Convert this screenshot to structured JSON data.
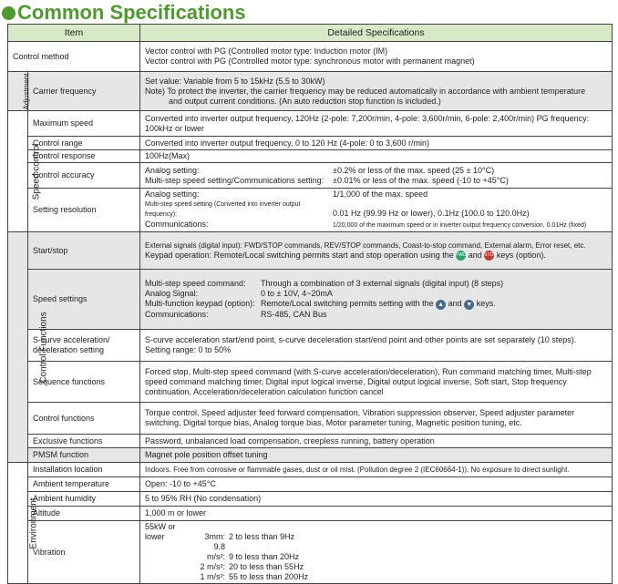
{
  "title": "Common Specifications",
  "colors": {
    "title": "#4f9a2e",
    "header_bg": "#d7e9c6",
    "group_bg": "#e6e6e6",
    "fwd_key": "#2aa36a",
    "stop_key": "#c0392b",
    "arrow_key": "#4a6a8a"
  },
  "header": {
    "item": "Item",
    "spec": "Detailed Specifications"
  },
  "groups": {
    "adjustment": "Adjustment",
    "speed_control": "Speed control",
    "control_functions": "Control Functions",
    "environment": "Environment"
  },
  "rows": {
    "control_method": {
      "item": "Control method",
      "lines": [
        "Vector control with PG (Controlled motor type: Induction motor (IM)",
        "Vector control with PG (Controlled motor type: synchronous motor with permanent magnet)"
      ]
    },
    "carrier": {
      "item": "Carrier frequency",
      "lines": [
        "Set value: Variable from 5 to 15kHz (5.5 to 30kW)",
        "Note) To protect the inverter, the carrier frequency may be reduced automatically in accordance with ambient temperature",
        "and output current conditions. (An auto reduction stop function is included.)"
      ]
    },
    "max_speed": {
      "item": "Maximum speed",
      "text": "Converted into inverter output frequency, 120Hz (2-pole: 7,200r/min, 4-pole: 3,600r/min, 6-pole: 2,400r/min) PG frequency: 100kHz or lower"
    },
    "control_range": {
      "item": "Control range",
      "text": "Converted into inverter output frequency, 0 to 120 Hz (4-pole: 0 to 3,600 r/min)"
    },
    "control_response": {
      "item": "Control response",
      "text": "100Hz(Max)"
    },
    "control_accuracy": {
      "item": "Control accuracy",
      "l1": "Analog setting:",
      "v1": "±0.2% or less of the max. speed (25 ± 10°C)",
      "l2": "Multi-step speed setting/Communications setting:",
      "v2": "±0.01% or less of the max. speed (-10 to +45°C)"
    },
    "setting_resolution": {
      "item": "Setting resolution",
      "l1": "Analog setting:",
      "v1": "1/1,000 of the max. speed",
      "l2": "Multi-step speed setting (Converted into inverter output frequency):",
      "v2": "0.01 Hz (99.99 Hz or lower), 0.1Hz (100.0 to 120.0Hz)",
      "l3": "Communications:",
      "v3": "1/20,000 of the maximum speed or in inverter output frequency conversion, 0.01Hz (fixed)"
    },
    "start_stop": {
      "item": "Start/stop",
      "line1": "External signals (digital input): FWD/STOP commands, REV/STOP commands, Coast-to-stop command, External alarm, Error reset, etc.",
      "line2a": "Keypad operation: Remote/Local switching permits start and stop operation using the",
      "fwd": "FWD",
      "and": "and",
      "stop": "STOP",
      "line2b": "keys (option)."
    },
    "speed_settings": {
      "item": "Speed settings",
      "l1": "Multi-step speed command:",
      "v1": "Through a combination of 3 external signals (digital input) (8 steps)",
      "l2": "Analog Signal:",
      "v2": "0 to ± 10V, 4~20mA",
      "l3": "Multi-function keypad (option):",
      "v3a": "Remote/Local switching permits setting with the",
      "and": "and",
      "v3b": "keys.",
      "l4": "Communications:",
      "v4": "RS-485, CAN Bus"
    },
    "s_curve": {
      "item": "S-curve acceleration/ deceleration setting",
      "lines": [
        "S-curve acceleration start/end point, s-curve deceleration start/end point and other points are set separately (10 steps).",
        "Setting range: 0 to 50%"
      ]
    },
    "sequence": {
      "item": "Sequence functions",
      "text": "Forced stop, Multi-step speed command (with S-curve acceleration/deceleration), Run command matching timer, Multi-step speed command matching timer, Digital input logical inverse, Digital output logical inverse, Soft start, Stop frequency continuation, Acceleration/deceleration calculation function cancel"
    },
    "control_functions": {
      "item": "Control functions",
      "text": "Torque control, Speed adjuster feed forward compensation, Vibration suppression observer, Speed adjuster parameter switching, Digital torque bias, Analog torque bias, Motor parameter tuning, Magnetic position tuning, etc."
    },
    "exclusive": {
      "item": "Exclusive functions",
      "text": "Password, unbalanced load compensation, creepless running, battery operation"
    },
    "pmsm": {
      "item": "PMSM function",
      "text": "Magnet pole position offset tuning"
    },
    "installation": {
      "item": "Installation location",
      "text": "Indoors. Free from corrosive or flammable gases, dust or oil mist. (Pollution degree 2 (IEC60664-1)). No exposure to direct sunlight."
    },
    "ambient_temp": {
      "item": "Ambient temperature",
      "text": "Open: -10 to +45°C"
    },
    "humidity": {
      "item": "Ambient humidity",
      "text": "5 to 95% RH (No condensation)"
    },
    "altitude": {
      "item": "Altitude",
      "text": "1,000 m or lower"
    },
    "vibration": {
      "item": "Vibration",
      "cond": "55kW or lower",
      "a1": "3mm:",
      "b1": "2 to less than 9Hz",
      "a2": "9.8 m/s²:",
      "b2": "9 to less than 20Hz",
      "a3": "2 m/s²:",
      "b3": "20 to less than 55Hz",
      "a4": "1 m/s²:",
      "b4": "55 to less than 200Hz"
    }
  }
}
